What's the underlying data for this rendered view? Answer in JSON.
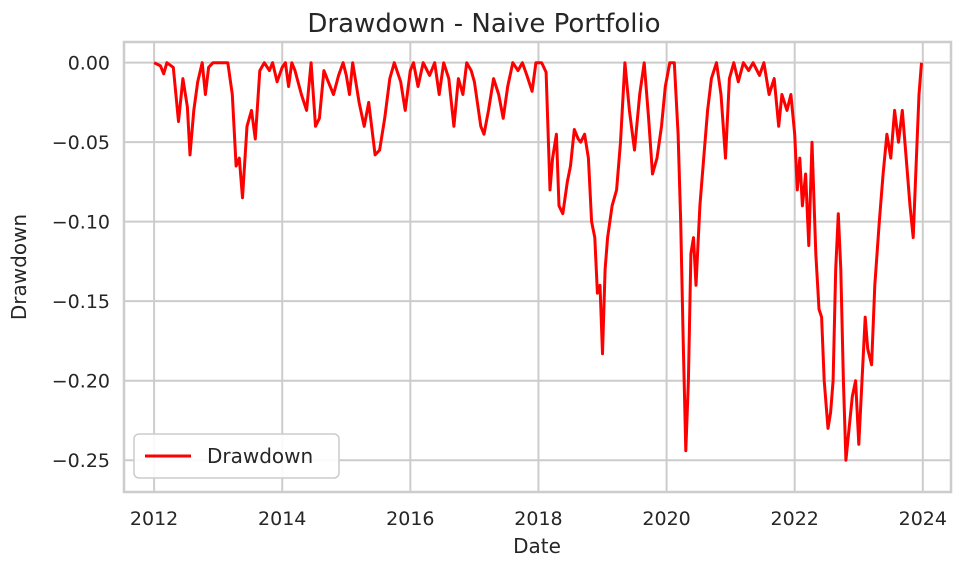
{
  "chart_data": {
    "type": "line",
    "title": "Drawdown - Naive Portfolio",
    "xlabel": "Date",
    "ylabel": "Drawdown",
    "xlim": [
      2011.53,
      2024.44
    ],
    "ylim": [
      -0.27,
      0.013
    ],
    "x_ticks": [
      2012,
      2014,
      2016,
      2018,
      2020,
      2022,
      2024
    ],
    "x_tick_labels": [
      "2012",
      "2014",
      "2016",
      "2018",
      "2020",
      "2022",
      "2024"
    ],
    "y_ticks": [
      0.0,
      -0.05,
      -0.1,
      -0.15,
      -0.2,
      -0.25
    ],
    "y_tick_labels": [
      "0.00",
      "−0.05",
      "−0.10",
      "−0.15",
      "−0.20",
      "−0.25"
    ],
    "grid": true,
    "legend_position": "lower-left",
    "series": [
      {
        "name": "Drawdown",
        "color": "#ff0000",
        "points": [
          [
            2012.0,
            0.0
          ],
          [
            2012.1,
            -0.002
          ],
          [
            2012.15,
            -0.007
          ],
          [
            2012.2,
            0.0
          ],
          [
            2012.3,
            -0.003
          ],
          [
            2012.38,
            -0.037
          ],
          [
            2012.45,
            -0.01
          ],
          [
            2012.52,
            -0.028
          ],
          [
            2012.56,
            -0.058
          ],
          [
            2012.62,
            -0.03
          ],
          [
            2012.68,
            -0.012
          ],
          [
            2012.75,
            0.0
          ],
          [
            2012.8,
            -0.02
          ],
          [
            2012.85,
            -0.003
          ],
          [
            2012.92,
            0.0
          ],
          [
            2013.0,
            0.0
          ],
          [
            2013.08,
            0.0
          ],
          [
            2013.15,
            0.0
          ],
          [
            2013.22,
            -0.02
          ],
          [
            2013.28,
            -0.065
          ],
          [
            2013.33,
            -0.06
          ],
          [
            2013.38,
            -0.085
          ],
          [
            2013.45,
            -0.04
          ],
          [
            2013.52,
            -0.03
          ],
          [
            2013.58,
            -0.048
          ],
          [
            2013.65,
            -0.005
          ],
          [
            2013.72,
            0.0
          ],
          [
            2013.8,
            -0.005
          ],
          [
            2013.85,
            0.0
          ],
          [
            2013.92,
            -0.012
          ],
          [
            2014.0,
            -0.003
          ],
          [
            2014.05,
            0.0
          ],
          [
            2014.1,
            -0.015
          ],
          [
            2014.15,
            0.0
          ],
          [
            2014.2,
            -0.005
          ],
          [
            2014.3,
            -0.02
          ],
          [
            2014.38,
            -0.03
          ],
          [
            2014.45,
            0.0
          ],
          [
            2014.52,
            -0.04
          ],
          [
            2014.58,
            -0.035
          ],
          [
            2014.65,
            -0.005
          ],
          [
            2014.72,
            -0.012
          ],
          [
            2014.8,
            -0.02
          ],
          [
            2014.88,
            -0.008
          ],
          [
            2014.95,
            0.0
          ],
          [
            2015.0,
            -0.008
          ],
          [
            2015.05,
            -0.02
          ],
          [
            2015.1,
            0.0
          ],
          [
            2015.2,
            -0.025
          ],
          [
            2015.28,
            -0.04
          ],
          [
            2015.35,
            -0.025
          ],
          [
            2015.45,
            -0.058
          ],
          [
            2015.52,
            -0.055
          ],
          [
            2015.6,
            -0.035
          ],
          [
            2015.68,
            -0.01
          ],
          [
            2015.75,
            0.0
          ],
          [
            2015.85,
            -0.012
          ],
          [
            2015.92,
            -0.03
          ],
          [
            2016.0,
            -0.005
          ],
          [
            2016.05,
            0.0
          ],
          [
            2016.12,
            -0.015
          ],
          [
            2016.2,
            0.0
          ],
          [
            2016.3,
            -0.008
          ],
          [
            2016.38,
            0.0
          ],
          [
            2016.45,
            -0.02
          ],
          [
            2016.52,
            0.0
          ],
          [
            2016.6,
            -0.01
          ],
          [
            2016.68,
            -0.04
          ],
          [
            2016.75,
            -0.01
          ],
          [
            2016.82,
            -0.02
          ],
          [
            2016.88,
            0.0
          ],
          [
            2016.95,
            -0.005
          ],
          [
            2017.0,
            -0.012
          ],
          [
            2017.1,
            -0.04
          ],
          [
            2017.15,
            -0.045
          ],
          [
            2017.22,
            -0.03
          ],
          [
            2017.3,
            -0.01
          ],
          [
            2017.38,
            -0.02
          ],
          [
            2017.45,
            -0.035
          ],
          [
            2017.52,
            -0.015
          ],
          [
            2017.6,
            0.0
          ],
          [
            2017.68,
            -0.005
          ],
          [
            2017.75,
            0.0
          ],
          [
            2017.82,
            -0.008
          ],
          [
            2017.9,
            -0.018
          ],
          [
            2017.96,
            0.0
          ],
          [
            2018.05,
            0.0
          ],
          [
            2018.12,
            -0.006
          ],
          [
            2018.18,
            -0.08
          ],
          [
            2018.22,
            -0.06
          ],
          [
            2018.28,
            -0.045
          ],
          [
            2018.32,
            -0.09
          ],
          [
            2018.38,
            -0.095
          ],
          [
            2018.45,
            -0.075
          ],
          [
            2018.5,
            -0.065
          ],
          [
            2018.56,
            -0.042
          ],
          [
            2018.62,
            -0.048
          ],
          [
            2018.66,
            -0.05
          ],
          [
            2018.72,
            -0.045
          ],
          [
            2018.78,
            -0.06
          ],
          [
            2018.83,
            -0.1
          ],
          [
            2018.88,
            -0.11
          ],
          [
            2018.92,
            -0.145
          ],
          [
            2018.96,
            -0.14
          ],
          [
            2019.0,
            -0.183
          ],
          [
            2019.04,
            -0.13
          ],
          [
            2019.08,
            -0.11
          ],
          [
            2019.15,
            -0.09
          ],
          [
            2019.22,
            -0.08
          ],
          [
            2019.28,
            -0.05
          ],
          [
            2019.35,
            0.0
          ],
          [
            2019.42,
            -0.03
          ],
          [
            2019.5,
            -0.055
          ],
          [
            2019.58,
            -0.02
          ],
          [
            2019.65,
            0.0
          ],
          [
            2019.72,
            -0.035
          ],
          [
            2019.78,
            -0.07
          ],
          [
            2019.85,
            -0.06
          ],
          [
            2019.92,
            -0.04
          ],
          [
            2019.98,
            -0.015
          ],
          [
            2020.05,
            0.0
          ],
          [
            2020.12,
            0.0
          ],
          [
            2020.18,
            -0.045
          ],
          [
            2020.22,
            -0.1
          ],
          [
            2020.26,
            -0.175
          ],
          [
            2020.3,
            -0.244
          ],
          [
            2020.34,
            -0.2
          ],
          [
            2020.38,
            -0.12
          ],
          [
            2020.42,
            -0.11
          ],
          [
            2020.46,
            -0.14
          ],
          [
            2020.52,
            -0.09
          ],
          [
            2020.58,
            -0.06
          ],
          [
            2020.64,
            -0.03
          ],
          [
            2020.7,
            -0.01
          ],
          [
            2020.78,
            0.0
          ],
          [
            2020.85,
            -0.02
          ],
          [
            2020.92,
            -0.06
          ],
          [
            2020.98,
            -0.01
          ],
          [
            2021.05,
            0.0
          ],
          [
            2021.12,
            -0.012
          ],
          [
            2021.2,
            0.0
          ],
          [
            2021.28,
            -0.005
          ],
          [
            2021.35,
            0.0
          ],
          [
            2021.45,
            -0.008
          ],
          [
            2021.52,
            0.0
          ],
          [
            2021.6,
            -0.02
          ],
          [
            2021.68,
            -0.01
          ],
          [
            2021.75,
            -0.04
          ],
          [
            2021.8,
            -0.02
          ],
          [
            2021.88,
            -0.03
          ],
          [
            2021.94,
            -0.02
          ],
          [
            2022.0,
            -0.045
          ],
          [
            2022.04,
            -0.08
          ],
          [
            2022.08,
            -0.06
          ],
          [
            2022.12,
            -0.09
          ],
          [
            2022.17,
            -0.07
          ],
          [
            2022.22,
            -0.115
          ],
          [
            2022.27,
            -0.05
          ],
          [
            2022.33,
            -0.12
          ],
          [
            2022.38,
            -0.155
          ],
          [
            2022.42,
            -0.16
          ],
          [
            2022.46,
            -0.2
          ],
          [
            2022.52,
            -0.23
          ],
          [
            2022.56,
            -0.22
          ],
          [
            2022.6,
            -0.2
          ],
          [
            2022.64,
            -0.13
          ],
          [
            2022.68,
            -0.095
          ],
          [
            2022.72,
            -0.13
          ],
          [
            2022.76,
            -0.2
          ],
          [
            2022.8,
            -0.25
          ],
          [
            2022.85,
            -0.23
          ],
          [
            2022.9,
            -0.21
          ],
          [
            2022.95,
            -0.2
          ],
          [
            2023.0,
            -0.24
          ],
          [
            2023.05,
            -0.2
          ],
          [
            2023.1,
            -0.16
          ],
          [
            2023.14,
            -0.18
          ],
          [
            2023.2,
            -0.19
          ],
          [
            2023.25,
            -0.14
          ],
          [
            2023.32,
            -0.1
          ],
          [
            2023.38,
            -0.07
          ],
          [
            2023.44,
            -0.045
          ],
          [
            2023.5,
            -0.06
          ],
          [
            2023.56,
            -0.03
          ],
          [
            2023.62,
            -0.05
          ],
          [
            2023.68,
            -0.03
          ],
          [
            2023.74,
            -0.06
          ],
          [
            2023.8,
            -0.09
          ],
          [
            2023.85,
            -0.11
          ],
          [
            2023.9,
            -0.06
          ],
          [
            2023.94,
            -0.02
          ],
          [
            2023.98,
            0.0
          ]
        ]
      }
    ]
  }
}
